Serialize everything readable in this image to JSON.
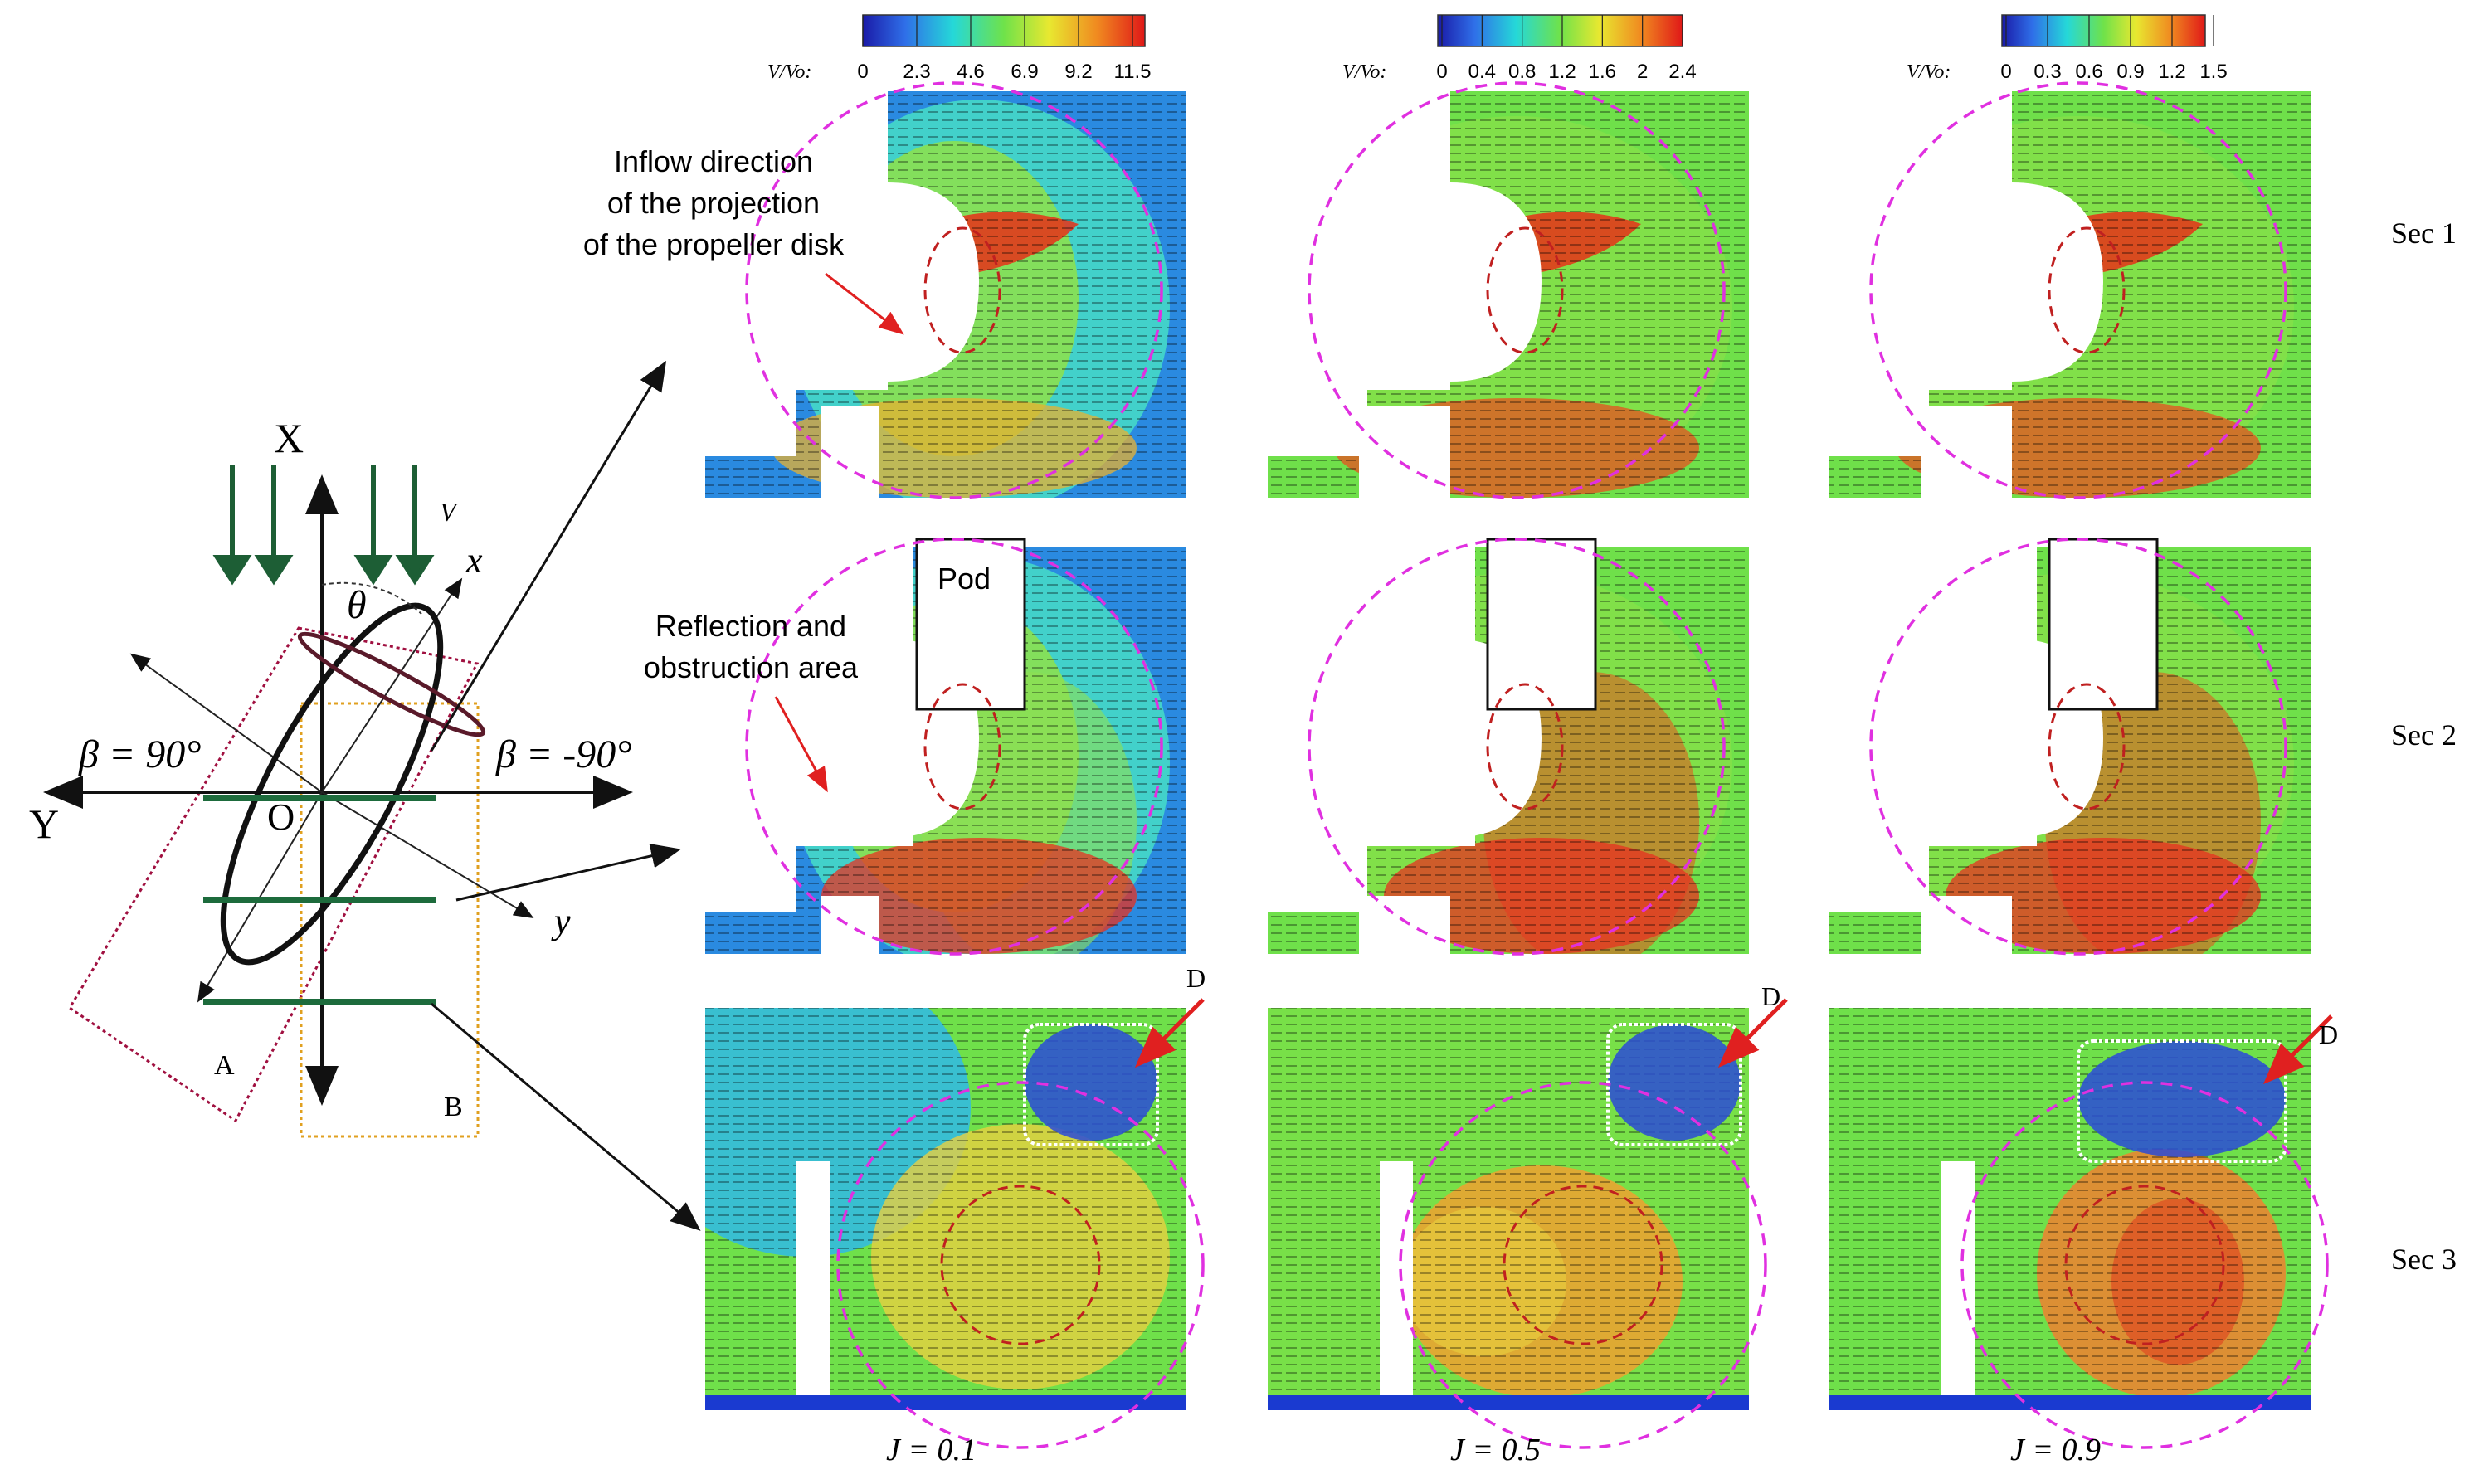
{
  "colorbars": [
    {
      "label": "V/Vo:",
      "ticks": [
        "0",
        "2.3",
        "4.6",
        "6.9",
        "9.2",
        "11.5"
      ]
    },
    {
      "label": "V/Vo:",
      "ticks": [
        "0",
        "0.4",
        "0.8",
        "1.2",
        "1.6",
        "2",
        "2.4"
      ]
    },
    {
      "label": "V/Vo:",
      "ticks": [
        "0",
        "0.3",
        "0.6",
        "0.9",
        "1.2",
        "1.5"
      ]
    }
  ],
  "columns": [
    "J = 0.1",
    "J = 0.5",
    "J = 0.9"
  ],
  "rows": [
    "Sec 1",
    "Sec 2",
    "Sec 3"
  ],
  "annotations": {
    "inflow": [
      "Inflow direction",
      "of the projection",
      "of the propeller disk"
    ],
    "pod": "Pod",
    "reflection": [
      "Reflection and",
      "obstruction area"
    ],
    "d_label": "D"
  },
  "schematic": {
    "axis_X": "X",
    "axis_Y": "Y",
    "axis_x": "x",
    "axis_y": "y",
    "origin": "O",
    "velocity": "V",
    "theta": "θ",
    "beta_left": "β = 90°",
    "beta_right": "β = -90°",
    "label_A": "A",
    "label_B": "B"
  },
  "colors": {
    "inflow_arrow": "#1d5e35",
    "section_line": "#1d6b3c",
    "propeller": "#111111",
    "disk_edge": "#5a1a2a",
    "box_A": "#a01040",
    "box_B": "#e0a020",
    "magenta_circle": "#e030e0",
    "red_circle": "#c02020",
    "red_arrow": "#e02020"
  }
}
